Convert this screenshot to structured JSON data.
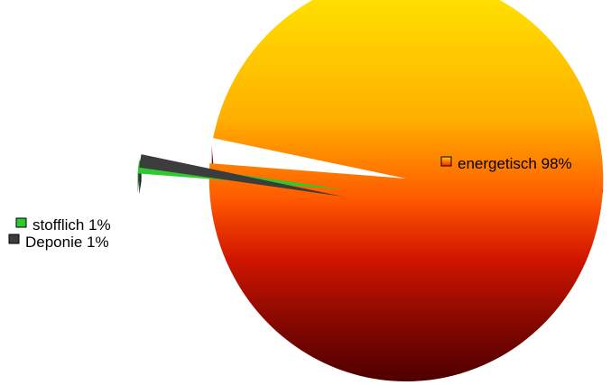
{
  "chart_data": {
    "type": "pie",
    "style": "3d-exploded",
    "title": "",
    "slices": [
      {
        "name": "energetisch",
        "value": 98,
        "label": "energetisch 98%",
        "color": "#ff1a00",
        "color_top": "#ffe400"
      },
      {
        "name": "stofflich",
        "value": 1,
        "label": "stofflich 1%",
        "color": "#2ec830"
      },
      {
        "name": "Deponie",
        "value": 1,
        "label": "Deponie 1%",
        "color": "#333333"
      }
    ],
    "legend": "inline-labels"
  }
}
